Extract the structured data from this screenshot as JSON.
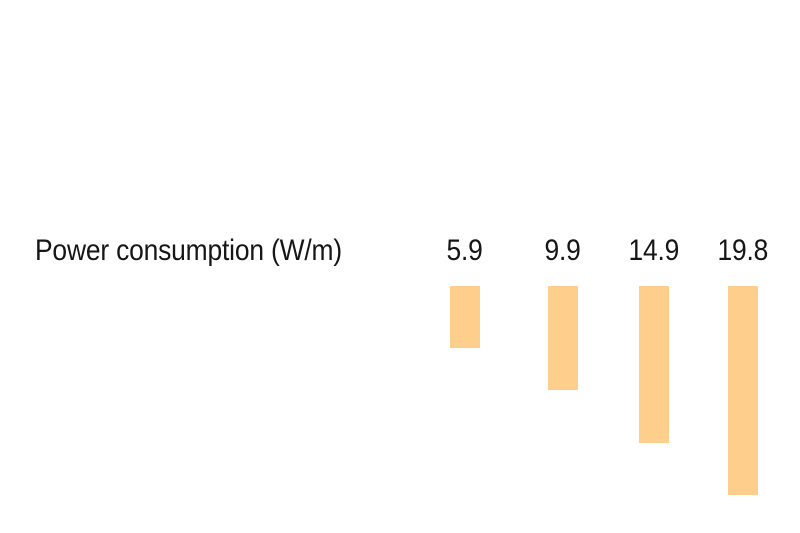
{
  "chart_data": {
    "type": "bar",
    "title": "Power consumption (W/m)",
    "unit": "W/m",
    "values": [
      5.9,
      9.9,
      14.9,
      19.8
    ],
    "value_labels": [
      "5.9",
      "9.9",
      "14.9",
      "19.8"
    ],
    "bars_direction": "downward-from-common-top",
    "value_labels_position": "above-bars",
    "bar_color": "#FDCE8C",
    "text_color": "#161616",
    "background_color": "#FFFFFF",
    "grid": false,
    "legend": "none",
    "axes": "none"
  }
}
